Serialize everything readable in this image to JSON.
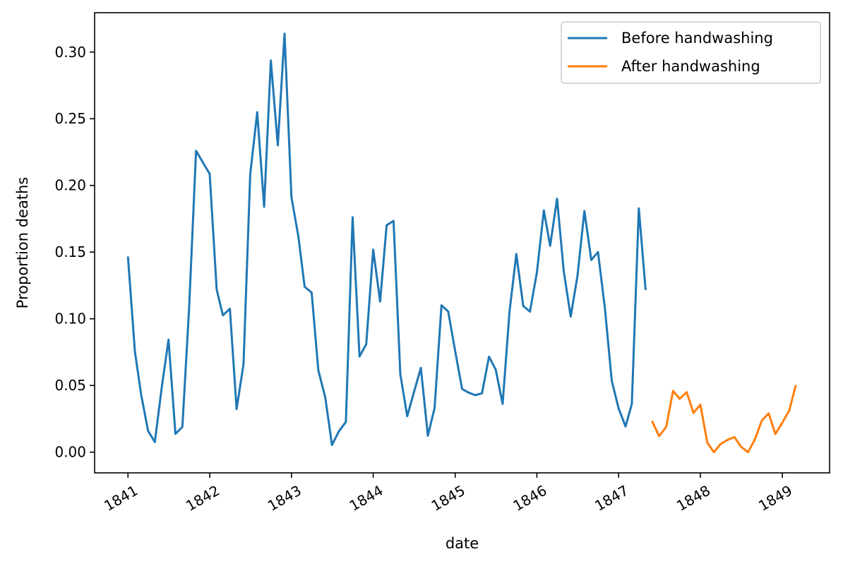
{
  "chart_data": {
    "type": "line",
    "title": "",
    "xlabel": "date",
    "ylabel": "Proportion deaths",
    "xlim": [
      "1840-08-05",
      "1849-07-31"
    ],
    "ylim": [
      -0.0155,
      0.3295
    ],
    "x_ticks": [
      "1841",
      "1842",
      "1843",
      "1844",
      "1845",
      "1846",
      "1847",
      "1848",
      "1849"
    ],
    "y_ticks": [
      "0.00",
      "0.05",
      "0.10",
      "0.15",
      "0.20",
      "0.25",
      "0.30"
    ],
    "grid": false,
    "legend_position": "top-right",
    "series": [
      {
        "name": "Before handwashing",
        "color": "#1f77b4",
        "points": [
          [
            "1841-01-01",
            0.146
          ],
          [
            "1841-02-01",
            0.0753
          ],
          [
            "1841-03-01",
            0.0429
          ],
          [
            "1841-04-01",
            0.0159
          ],
          [
            "1841-05-01",
            0.0076
          ],
          [
            "1841-06-01",
            0.049
          ],
          [
            "1841-07-01",
            0.0844
          ],
          [
            "1841-08-01",
            0.0137
          ],
          [
            "1841-09-01",
            0.0189
          ],
          [
            "1841-10-01",
            0.1084
          ],
          [
            "1841-11-01",
            0.2259
          ],
          [
            "1842-01-01",
            0.2086
          ],
          [
            "1842-02-01",
            0.122
          ],
          [
            "1842-03-01",
            0.1026
          ],
          [
            "1842-04-01",
            0.1075
          ],
          [
            "1842-05-01",
            0.0323
          ],
          [
            "1842-06-01",
            0.0659
          ],
          [
            "1842-07-01",
            0.2083
          ],
          [
            "1842-08-01",
            0.2549
          ],
          [
            "1842-09-01",
            0.184
          ],
          [
            "1842-10-01",
            0.2936
          ],
          [
            "1842-11-01",
            0.2301
          ],
          [
            "1842-12-01",
            0.3138
          ],
          [
            "1843-01-01",
            0.1912
          ],
          [
            "1843-02-01",
            0.1617
          ],
          [
            "1843-03-01",
            0.124
          ],
          [
            "1843-04-01",
            0.1197
          ],
          [
            "1843-05-01",
            0.0613
          ],
          [
            "1843-06-01",
            0.041
          ],
          [
            "1843-07-01",
            0.0054
          ],
          [
            "1843-08-01",
            0.0156
          ],
          [
            "1843-09-01",
            0.0227
          ],
          [
            "1843-10-01",
            0.1761
          ],
          [
            "1843-11-01",
            0.0717
          ],
          [
            "1843-12-01",
            0.0809
          ],
          [
            "1844-01-01",
            0.1518
          ],
          [
            "1844-02-01",
            0.113
          ],
          [
            "1844-03-01",
            0.1701
          ],
          [
            "1844-04-01",
            0.1734
          ],
          [
            "1844-05-01",
            0.0584
          ],
          [
            "1844-06-01",
            0.027
          ],
          [
            "1844-07-01",
            0.045
          ],
          [
            "1844-08-01",
            0.0632
          ],
          [
            "1844-09-01",
            0.0124
          ],
          [
            "1844-10-01",
            0.033
          ],
          [
            "1844-11-01",
            0.1101
          ],
          [
            "1844-12-01",
            0.1055
          ],
          [
            "1845-01-01",
            0.0758
          ],
          [
            "1845-02-01",
            0.0474
          ],
          [
            "1845-03-01",
            0.0447
          ],
          [
            "1845-04-01",
            0.0427
          ],
          [
            "1845-05-01",
            0.0442
          ],
          [
            "1845-06-01",
            0.0716
          ],
          [
            "1845-07-01",
            0.0619
          ],
          [
            "1845-08-01",
            0.0362
          ],
          [
            "1845-09-01",
            0.1056
          ],
          [
            "1845-10-01",
            0.1486
          ],
          [
            "1845-11-01",
            0.1096
          ],
          [
            "1845-12-01",
            0.1054
          ],
          [
            "1846-01-01",
            0.1346
          ],
          [
            "1846-02-01",
            0.1812
          ],
          [
            "1846-03-01",
            0.1547
          ],
          [
            "1846-04-01",
            0.19
          ],
          [
            "1846-05-01",
            0.1356
          ],
          [
            "1846-06-01",
            0.1017
          ],
          [
            "1846-07-01",
            0.1321
          ],
          [
            "1846-08-01",
            0.1808
          ],
          [
            "1846-09-01",
            0.1441
          ],
          [
            "1846-10-01",
            0.15
          ],
          [
            "1846-11-01",
            0.1073
          ],
          [
            "1846-12-01",
            0.0537
          ],
          [
            "1847-01-01",
            0.0328
          ],
          [
            "1847-02-01",
            0.0193
          ],
          [
            "1847-03-01",
            0.0361
          ],
          [
            "1847-04-01",
            0.1828
          ],
          [
            "1847-05-01",
            0.1224
          ]
        ]
      },
      {
        "name": "After handwashing",
        "color": "#ff7f0e",
        "points": [
          [
            "1847-06-01",
            0.0227
          ],
          [
            "1847-07-01",
            0.012
          ],
          [
            "1847-08-01",
            0.0189
          ],
          [
            "1847-09-01",
            0.0459
          ],
          [
            "1847-10-01",
            0.04
          ],
          [
            "1847-11-01",
            0.045
          ],
          [
            "1847-12-01",
            0.0294
          ],
          [
            "1848-01-01",
            0.0356
          ],
          [
            "1848-02-01",
            0.0072
          ],
          [
            "1848-03-01",
            0.0
          ],
          [
            "1848-04-01",
            0.0062
          ],
          [
            "1848-05-01",
            0.0092
          ],
          [
            "1848-06-01",
            0.0113
          ],
          [
            "1848-07-01",
            0.004
          ],
          [
            "1848-08-01",
            0.0
          ],
          [
            "1848-09-01",
            0.0098
          ],
          [
            "1848-10-01",
            0.0236
          ],
          [
            "1848-11-01",
            0.0291
          ],
          [
            "1848-12-01",
            0.0136
          ],
          [
            "1849-01-01",
            0.0222
          ],
          [
            "1849-02-01",
            0.0312
          ],
          [
            "1849-03-01",
            0.0496
          ]
        ]
      }
    ]
  }
}
